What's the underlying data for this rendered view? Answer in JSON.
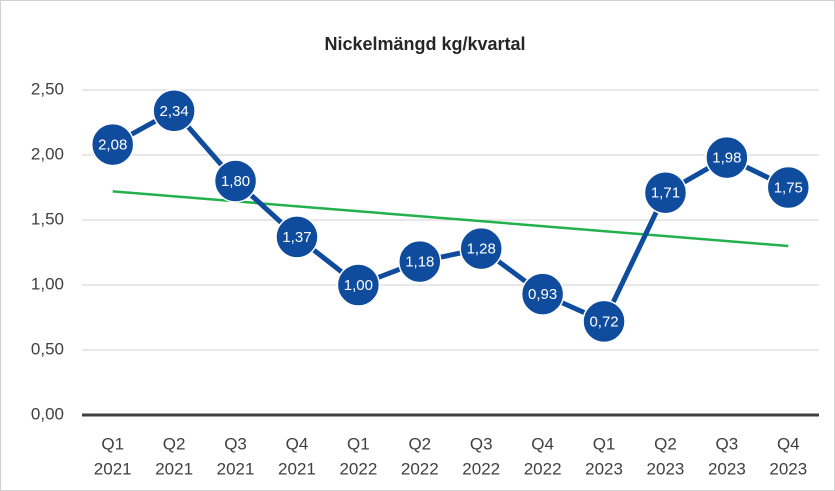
{
  "chart_data": {
    "type": "line",
    "title": "Nickelmängd kg/kvartal",
    "categories": [
      [
        "Q1",
        "2021"
      ],
      [
        "Q2",
        "2021"
      ],
      [
        "Q3",
        "2021"
      ],
      [
        "Q4",
        "2021"
      ],
      [
        "Q1",
        "2022"
      ],
      [
        "Q2",
        "2022"
      ],
      [
        "Q3",
        "2022"
      ],
      [
        "Q4",
        "2022"
      ],
      [
        "Q1",
        "2023"
      ],
      [
        "Q2",
        "2023"
      ],
      [
        "Q3",
        "2023"
      ],
      [
        "Q4",
        "2023"
      ]
    ],
    "values": [
      2.08,
      2.34,
      1.8,
      1.37,
      1.0,
      1.18,
      1.28,
      0.93,
      0.72,
      1.71,
      1.98,
      1.75
    ],
    "value_labels": [
      "2,08",
      "2,34",
      "1,80",
      "1,37",
      "1,00",
      "1,18",
      "1,28",
      "0,93",
      "0,72",
      "1,71",
      "1,98",
      "1,75"
    ],
    "color": "#0f4c9e",
    "trendline": {
      "color": "#22b14c",
      "start": 1.72,
      "end": 1.3
    },
    "ylim": [
      0,
      2.5
    ],
    "yticks": [
      {
        "value": 0,
        "label": "0,00"
      },
      {
        "value": 0.5,
        "label": "0,50"
      },
      {
        "value": 1,
        "label": "1,00"
      },
      {
        "value": 1.5,
        "label": "1,50"
      },
      {
        "value": 2,
        "label": "2,00"
      },
      {
        "value": 2.5,
        "label": "2,50"
      }
    ],
    "grid": true
  }
}
